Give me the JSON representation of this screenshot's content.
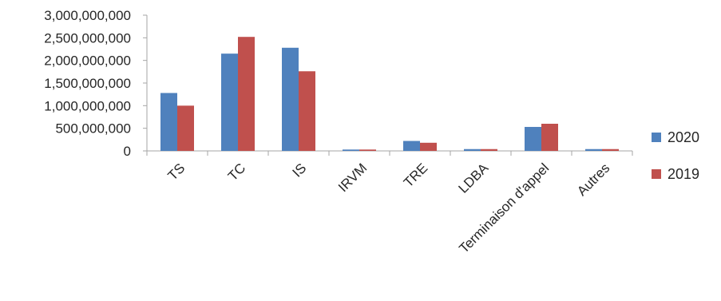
{
  "chart_data": {
    "type": "bar",
    "categories": [
      "TS",
      "TC",
      "IS",
      "IRVM",
      "TRE",
      "LDBA",
      "Terminaison d'appel",
      "Autres"
    ],
    "series": [
      {
        "name": "2020",
        "color": "#4F81BD",
        "values": [
          1280000000,
          2150000000,
          2280000000,
          30000000,
          220000000,
          40000000,
          530000000,
          40000000
        ]
      },
      {
        "name": "2019",
        "color": "#C0504D",
        "values": [
          1000000000,
          2520000000,
          1760000000,
          30000000,
          180000000,
          40000000,
          600000000,
          40000000
        ]
      }
    ],
    "y_ticks": [
      "0",
      "500,000,000",
      "1,000,000,000",
      "1,500,000,000",
      "2,000,000,000",
      "2,500,000,000",
      "3,000,000,000"
    ],
    "ylim": [
      0,
      3000000000
    ],
    "grid": false,
    "legend_position": "right",
    "title": "",
    "xlabel": "",
    "ylabel": ""
  }
}
